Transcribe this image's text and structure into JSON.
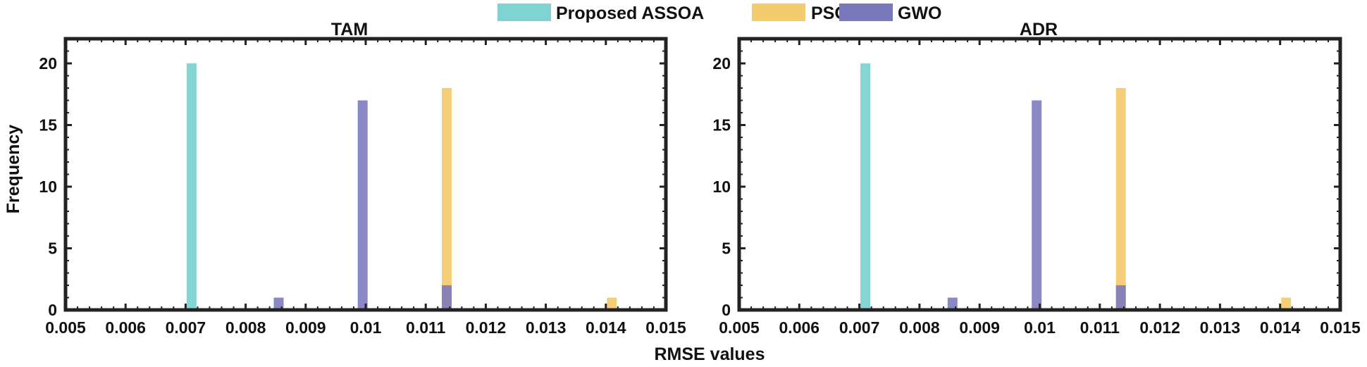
{
  "chart_data": {
    "type": "bar",
    "kind": "histogram",
    "xlabel": "RMSE values",
    "ylabel": "Frequency",
    "xlim": [
      0.005,
      0.015
    ],
    "ylim": [
      0,
      22
    ],
    "xticks": [
      "0.005",
      "0.006",
      "0.007",
      "0.008",
      "0.009",
      "0.01",
      "0.011",
      "0.012",
      "0.013",
      "0.014",
      "0.015"
    ],
    "yticks": [
      "0",
      "5",
      "10",
      "15",
      "20"
    ],
    "legend": {
      "position": "top-center",
      "entries": [
        {
          "name": "Proposed ASSOA",
          "color": "#7fd3d3"
        },
        {
          "name": "PSO",
          "color": "#f4cc70"
        },
        {
          "name": "GWO",
          "color": "#7a78bd"
        }
      ]
    },
    "panels": [
      {
        "title": "TAM",
        "series": [
          {
            "name": "Proposed ASSOA",
            "bins": [
              {
                "x": 0.0071,
                "count": 20
              }
            ]
          },
          {
            "name": "PSO",
            "bins": [
              {
                "x": 0.01135,
                "count": 18
              },
              {
                "x": 0.0141,
                "count": 1
              }
            ]
          },
          {
            "name": "GWO",
            "bins": [
              {
                "x": 0.00855,
                "count": 1
              },
              {
                "x": 0.00995,
                "count": 17
              },
              {
                "x": 0.01135,
                "count": 2
              }
            ]
          }
        ]
      },
      {
        "title": "ADR",
        "series": [
          {
            "name": "Proposed ASSOA",
            "bins": [
              {
                "x": 0.0071,
                "count": 20
              }
            ]
          },
          {
            "name": "PSO",
            "bins": [
              {
                "x": 0.01135,
                "count": 18
              },
              {
                "x": 0.0141,
                "count": 1
              }
            ]
          },
          {
            "name": "GWO",
            "bins": [
              {
                "x": 0.00855,
                "count": 1
              },
              {
                "x": 0.00995,
                "count": 17
              },
              {
                "x": 0.01135,
                "count": 2
              }
            ]
          }
        ]
      }
    ]
  }
}
